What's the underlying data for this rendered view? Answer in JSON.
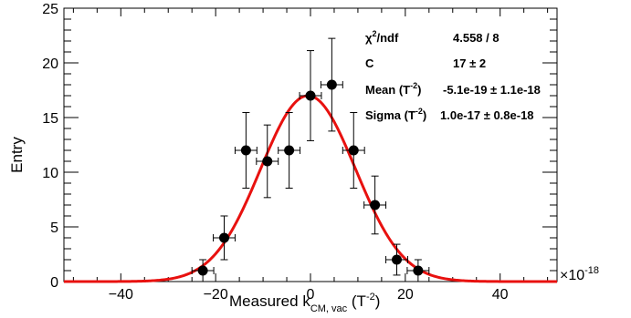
{
  "chart_data": {
    "type": "scatter",
    "title": "",
    "xlabel": "Measured k",
    "xlabel_sub": "CM, vac",
    "xlabel_unit_open": " (T",
    "xlabel_unit_exp": "-2",
    "xlabel_unit_close": ")",
    "ylabel": "Entry",
    "x_multiplier": "×10",
    "x_multiplier_exp": "-18",
    "xlim": [
      -52,
      52
    ],
    "ylim": [
      0,
      25
    ],
    "x_ticks": [
      -40,
      -20,
      0,
      20,
      40
    ],
    "y_ticks": [
      0,
      5,
      10,
      15,
      20,
      25
    ],
    "series": [
      {
        "kind": "data",
        "x_half_width": 2.3,
        "points": [
          {
            "x": -22.7,
            "y": 1,
            "err": 1.0
          },
          {
            "x": -18.2,
            "y": 4,
            "err": 2.0
          },
          {
            "x": -13.6,
            "y": 12,
            "err": 3.46
          },
          {
            "x": -9.1,
            "y": 11,
            "err": 3.32
          },
          {
            "x": -4.5,
            "y": 12,
            "err": 3.46
          },
          {
            "x": 0.0,
            "y": 17,
            "err": 4.12
          },
          {
            "x": 4.5,
            "y": 18,
            "err": 4.24
          },
          {
            "x": 9.1,
            "y": 12,
            "err": 3.46
          },
          {
            "x": 13.6,
            "y": 7,
            "err": 2.65
          },
          {
            "x": 18.2,
            "y": 2,
            "err": 1.41
          },
          {
            "x": 22.7,
            "y": 1,
            "err": 1.0
          }
        ]
      },
      {
        "kind": "fit",
        "function": "gaus",
        "constant": 17,
        "mean": -0.51,
        "sigma": 10.0,
        "color": "#e8110f"
      }
    ],
    "stats_box": [
      {
        "name_main": "χ",
        "name_sup": "2",
        "name_rest": "/ndf",
        "value": "4.558 / 8"
      },
      {
        "name_main": "C",
        "name_sup": "",
        "name_rest": "",
        "value": "17  ± 2"
      },
      {
        "name_main": "Mean (T",
        "name_sup": "-2",
        "name_rest": ")",
        "value": "-5.1e-19 ± 1.1e-18"
      },
      {
        "name_main": "Sigma (T",
        "name_sup": "-2",
        "name_rest": ")",
        "value": "1.0e-17 ± 0.8e-18"
      }
    ]
  }
}
